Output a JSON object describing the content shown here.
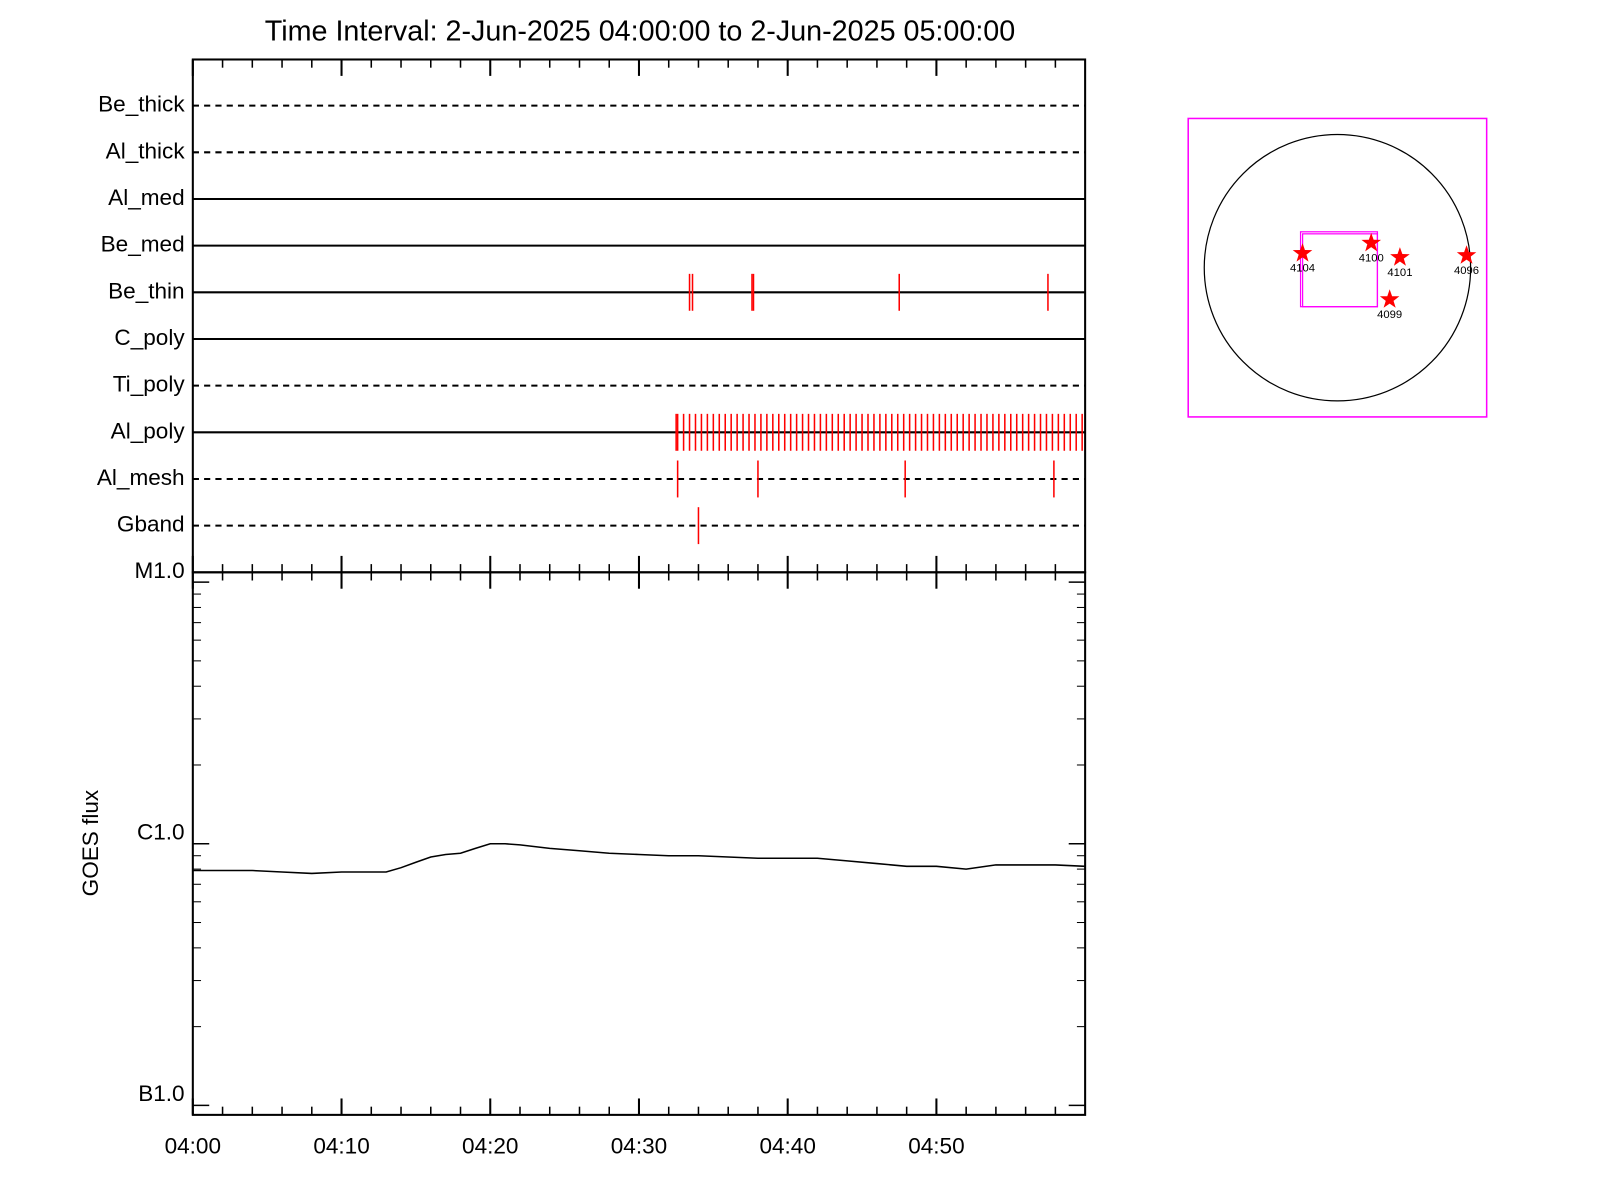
{
  "chart_data": [
    {
      "type": "timeline",
      "title": "Time Interval:  2-Jun-2025 04:00:00 to  2-Jun-2025 05:00:00",
      "categories": [
        "Be_thick",
        "Al_thick",
        "Al_med",
        "Be_med",
        "Be_thin",
        "C_poly",
        "Ti_poly",
        "Al_poly",
        "Al_mesh",
        "Gband"
      ],
      "styles": [
        "dashed",
        "dashed",
        "solid",
        "solid",
        "solid",
        "solid",
        "dashed",
        "solid",
        "dashed",
        "dashed"
      ],
      "color": "#ff0000",
      "events": [
        [],
        [],
        [],
        [],
        [
          33.4,
          33.6,
          37.6,
          37.7,
          47.5,
          57.5
        ],
        [],
        [],
        [
          32.5,
          32.6,
          33.0,
          33.4,
          33.8,
          34.2,
          34.6,
          35.0,
          35.4,
          35.8,
          36.2,
          36.6,
          37.0,
          37.4,
          37.8,
          38.2,
          38.6,
          39.0,
          39.4,
          39.8,
          40.2,
          40.6,
          41.0,
          41.4,
          41.8,
          42.2,
          42.6,
          43.0,
          43.4,
          43.8,
          44.2,
          44.6,
          45.0,
          45.4,
          45.8,
          46.2,
          46.6,
          47.0,
          47.4,
          47.8,
          48.2,
          48.6,
          49.0,
          49.4,
          49.8,
          50.2,
          50.6,
          51.0,
          51.4,
          51.8,
          52.2,
          52.6,
          53.0,
          53.4,
          53.8,
          54.2,
          54.6,
          55.0,
          55.4,
          55.8,
          56.2,
          56.6,
          57.0,
          57.4,
          57.8,
          58.2,
          58.6,
          59.0,
          59.4,
          59.8
        ],
        [
          32.6,
          38.0,
          47.9,
          57.9
        ],
        [
          34.0
        ]
      ],
      "xlim": [
        0,
        60
      ]
    },
    {
      "type": "line",
      "y_label": "GOES flux",
      "x": [
        0,
        2,
        4,
        6,
        8,
        10,
        12,
        13,
        14,
        15,
        16,
        17,
        18,
        19,
        20,
        21,
        22,
        24,
        26,
        28,
        30,
        32,
        34,
        36,
        38,
        40,
        42,
        44,
        46,
        48,
        50,
        52,
        54,
        56,
        58,
        60
      ],
      "values": [
        7.9e-07,
        7.9e-07,
        7.9e-07,
        7.8e-07,
        7.7e-07,
        7.8e-07,
        7.8e-07,
        7.8e-07,
        8.1e-07,
        8.5e-07,
        8.9e-07,
        9.1e-07,
        9.2e-07,
        9.6e-07,
        1e-06,
        1e-06,
        9.9e-07,
        9.6e-07,
        9.4e-07,
        9.2e-07,
        9.1e-07,
        9e-07,
        9e-07,
        8.9e-07,
        8.8e-07,
        8.8e-07,
        8.8e-07,
        8.6e-07,
        8.4e-07,
        8.2e-07,
        8.2e-07,
        8e-07,
        8.3e-07,
        8.3e-07,
        8.3e-07,
        8.2e-07
      ],
      "color": "#000000",
      "xlim": [
        0,
        60
      ],
      "xticks": [
        {
          "value": 0,
          "label": "04:00"
        },
        {
          "value": 10,
          "label": "04:10"
        },
        {
          "value": 20,
          "label": "04:20"
        },
        {
          "value": 30,
          "label": "04:30"
        },
        {
          "value": 40,
          "label": "04:40"
        },
        {
          "value": 50,
          "label": "04:50"
        }
      ],
      "xminor_ticks": [
        2,
        4,
        6,
        8,
        12,
        14,
        16,
        18,
        22,
        24,
        26,
        28,
        32,
        34,
        36,
        38,
        42,
        44,
        46,
        48,
        52,
        54,
        56,
        58
      ],
      "ylim": [
        9.2e-08,
        1.09e-05
      ],
      "log_y": true,
      "yticks": [
        {
          "value": 1e-07,
          "label": "B1.0"
        },
        {
          "value": 1e-06,
          "label": "C1.0"
        },
        {
          "value": 1e-05,
          "label": "M1.0"
        }
      ],
      "yminor_ticks": [
        2e-07,
        3e-07,
        4e-07,
        5e-07,
        6e-07,
        7e-07,
        8e-07,
        9e-07,
        2e-06,
        3e-06,
        4e-06,
        5e-06,
        6e-06,
        7e-06,
        8e-06,
        9e-06
      ]
    },
    {
      "type": "map",
      "xlim": [
        -1060,
        1060
      ],
      "ylim": [
        -1060,
        1060
      ],
      "solar_radius": 946,
      "box_color": "#ff00ff",
      "fov": {
        "xlim": [
          -262,
          284
        ],
        "ylim": [
          -277,
          255
        ]
      },
      "points": [
        {
          "label": "4104",
          "x": -248,
          "y": 102
        },
        {
          "label": "4100",
          "x": 240,
          "y": 175
        },
        {
          "label": "4101",
          "x": 444,
          "y": 73
        },
        {
          "label": "4096",
          "x": 917,
          "y": 87
        },
        {
          "label": "4099",
          "x": 371,
          "y": -226
        }
      ],
      "color": "#ff0000"
    }
  ]
}
